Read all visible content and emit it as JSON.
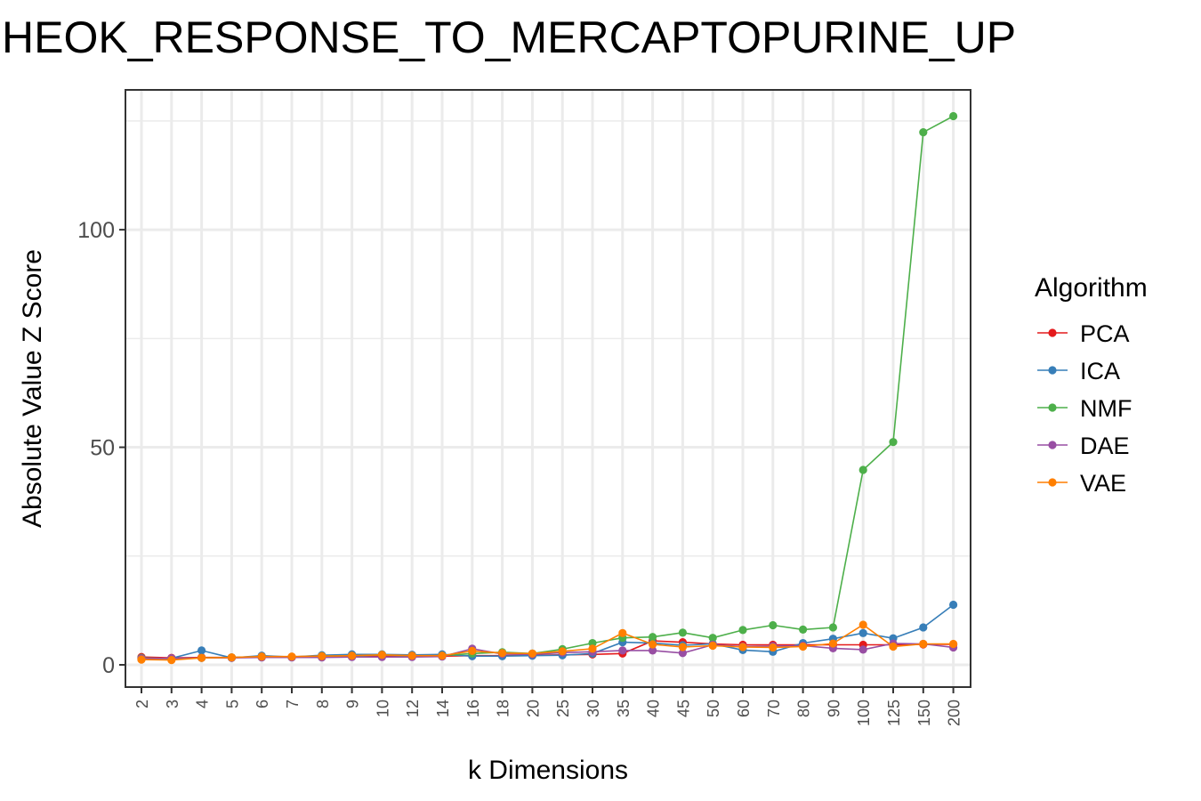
{
  "chart_data": {
    "type": "line",
    "title": "HEOK_RESPONSE_TO_MERCAPTOPURINE_UP",
    "xlabel": "k Dimensions",
    "ylabel": "Absolute Value Z Score",
    "ylim": [
      -5,
      130
    ],
    "yticks": [
      0,
      50,
      100
    ],
    "grid": true,
    "legend_title": "Algorithm",
    "legend_position": "right",
    "categories": [
      "2",
      "3",
      "4",
      "5",
      "6",
      "7",
      "8",
      "9",
      "10",
      "12",
      "14",
      "16",
      "18",
      "20",
      "25",
      "30",
      "35",
      "40",
      "45",
      "50",
      "60",
      "70",
      "80",
      "90",
      "100",
      "125",
      "150",
      "200"
    ],
    "series": [
      {
        "name": "PCA",
        "color": "#e41a1c",
        "values": [
          1.8,
          1.6,
          1.7,
          1.7,
          1.8,
          1.8,
          1.9,
          1.9,
          2.0,
          2.0,
          2.0,
          2.1,
          2.1,
          2.2,
          2.3,
          2.4,
          2.6,
          5.5,
          5.2,
          4.8,
          4.6,
          4.6,
          4.6,
          4.6,
          4.6,
          4.6,
          4.7,
          4.7
        ]
      },
      {
        "name": "ICA",
        "color": "#377eb8",
        "values": [
          1.3,
          1.5,
          3.3,
          1.6,
          2.1,
          1.8,
          2.2,
          2.4,
          2.4,
          2.3,
          2.4,
          2.0,
          2.0,
          2.1,
          2.2,
          2.6,
          5.2,
          5.0,
          4.5,
          4.8,
          3.4,
          3.0,
          5.0,
          6.0,
          7.3,
          6.1,
          8.6,
          13.8
        ]
      },
      {
        "name": "NMF",
        "color": "#4daf4a",
        "values": [
          1.6,
          1.4,
          1.6,
          1.7,
          1.8,
          1.8,
          2.0,
          2.0,
          2.3,
          2.0,
          2.1,
          2.6,
          2.9,
          2.6,
          3.6,
          5.0,
          6.2,
          6.4,
          7.4,
          6.2,
          8.0,
          9.1,
          8.1,
          8.6,
          44.8,
          51.2,
          122.4,
          126.1
        ]
      },
      {
        "name": "DAE",
        "color": "#984ea3",
        "values": [
          1.5,
          1.5,
          1.6,
          1.6,
          1.7,
          1.7,
          1.7,
          1.8,
          1.8,
          1.8,
          1.9,
          3.7,
          2.5,
          2.4,
          2.8,
          3.0,
          3.3,
          3.3,
          2.7,
          4.6,
          4.2,
          4.3,
          4.4,
          3.8,
          3.5,
          4.9,
          4.8,
          4.0
        ]
      },
      {
        "name": "VAE",
        "color": "#ff7f00",
        "values": [
          1.2,
          1.1,
          1.6,
          1.7,
          1.9,
          1.9,
          2.0,
          2.1,
          2.3,
          2.1,
          2.1,
          3.2,
          2.7,
          2.6,
          3.1,
          3.7,
          7.3,
          4.7,
          4.1,
          4.4,
          4.1,
          4.0,
          4.2,
          4.9,
          9.2,
          4.2,
          4.8,
          4.8
        ]
      }
    ]
  }
}
